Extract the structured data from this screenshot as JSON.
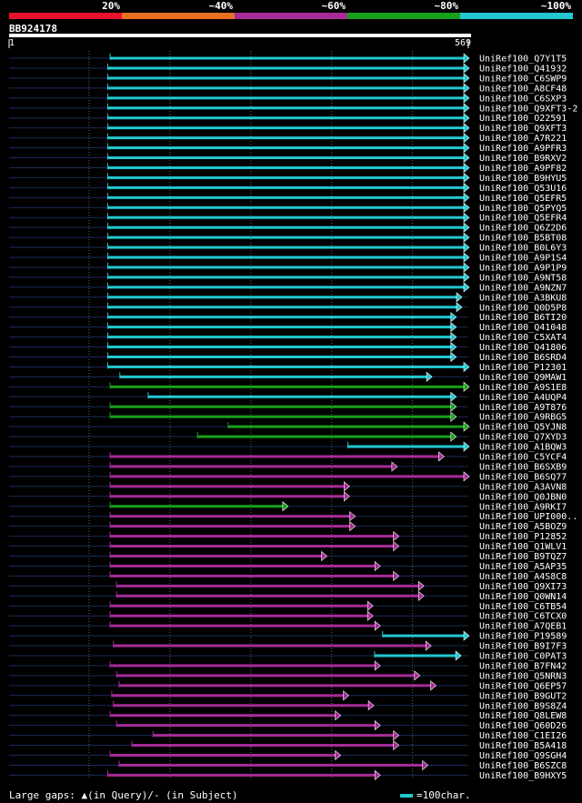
{
  "legend": {
    "segments": [
      {
        "label": "20%",
        "color": "#e8122c"
      },
      {
        "label": "~40%",
        "color": "#e87020"
      },
      {
        "label": "~60%",
        "color": "#a62b98"
      },
      {
        "label": "~80%",
        "color": "#17a01b"
      },
      {
        "label": "~100%",
        "color": "#22c7d0"
      }
    ]
  },
  "query": {
    "name": "BB924178",
    "start": "1",
    "end": "569"
  },
  "footer": {
    "gaps_text": "Large gaps: ▲(in Query)/- (in Subject)",
    "scale_text": "=100char."
  },
  "chart_data": {
    "type": "alignment-overview",
    "query_length": 569,
    "hits": [
      {
        "name": "UniRef100_Q7Y1T5",
        "start": 126,
        "end": 569,
        "color": "#22c7d0"
      },
      {
        "name": "UniRef100_Q41932",
        "start": 123,
        "end": 569,
        "color": "#22c7d0"
      },
      {
        "name": "UniRef100_C6SWP9",
        "start": 123,
        "end": 569,
        "color": "#22c7d0"
      },
      {
        "name": "UniRef100_A8CF48",
        "start": 123,
        "end": 569,
        "color": "#22c7d0"
      },
      {
        "name": "UniRef100_C6SXP3",
        "start": 123,
        "end": 569,
        "color": "#22c7d0"
      },
      {
        "name": "UniRef100_Q9XFT3-2",
        "start": 123,
        "end": 569,
        "color": "#22c7d0"
      },
      {
        "name": "UniRef100_O22591",
        "start": 123,
        "end": 569,
        "color": "#22c7d0"
      },
      {
        "name": "UniRef100_Q9XFT3",
        "start": 123,
        "end": 569,
        "color": "#22c7d0"
      },
      {
        "name": "UniRef100_A7R221",
        "start": 123,
        "end": 569,
        "color": "#22c7d0"
      },
      {
        "name": "UniRef100_A9PFR3",
        "start": 123,
        "end": 569,
        "color": "#22c7d0"
      },
      {
        "name": "UniRef100_B9RXV2",
        "start": 123,
        "end": 569,
        "color": "#22c7d0"
      },
      {
        "name": "UniRef100_A9PF82",
        "start": 123,
        "end": 569,
        "color": "#22c7d0"
      },
      {
        "name": "UniRef100_B9HYU5",
        "start": 123,
        "end": 569,
        "color": "#22c7d0"
      },
      {
        "name": "UniRef100_Q53U16",
        "start": 123,
        "end": 569,
        "color": "#22c7d0"
      },
      {
        "name": "UniRef100_Q5EFR5",
        "start": 123,
        "end": 569,
        "color": "#22c7d0"
      },
      {
        "name": "UniRef100_Q5PYQ5",
        "start": 123,
        "end": 569,
        "color": "#22c7d0"
      },
      {
        "name": "UniRef100_Q5EFR4",
        "start": 123,
        "end": 569,
        "color": "#22c7d0"
      },
      {
        "name": "UniRef100_Q6Z2D6",
        "start": 123,
        "end": 569,
        "color": "#22c7d0"
      },
      {
        "name": "UniRef100_B5BT08",
        "start": 123,
        "end": 569,
        "color": "#22c7d0"
      },
      {
        "name": "UniRef100_B0L6Y3",
        "start": 123,
        "end": 569,
        "color": "#22c7d0"
      },
      {
        "name": "UniRef100_A9P1S4",
        "start": 123,
        "end": 569,
        "color": "#22c7d0"
      },
      {
        "name": "UniRef100_A9P1P9",
        "start": 123,
        "end": 569,
        "color": "#22c7d0"
      },
      {
        "name": "UniRef100_A9NT58",
        "start": 123,
        "end": 569,
        "color": "#22c7d0"
      },
      {
        "name": "UniRef100_A9NZN7",
        "start": 123,
        "end": 569,
        "color": "#22c7d0"
      },
      {
        "name": "UniRef100_A3BKU8",
        "start": 123,
        "end": 560,
        "color": "#22c7d0"
      },
      {
        "name": "UniRef100_Q0D5P8",
        "start": 123,
        "end": 560,
        "color": "#22c7d0"
      },
      {
        "name": "UniRef100_B6TI20",
        "start": 123,
        "end": 553,
        "color": "#22c7d0"
      },
      {
        "name": "UniRef100_Q41048",
        "start": 123,
        "end": 553,
        "color": "#22c7d0"
      },
      {
        "name": "UniRef100_C5XAT4",
        "start": 123,
        "end": 553,
        "color": "#22c7d0"
      },
      {
        "name": "UniRef100_Q41806",
        "start": 123,
        "end": 553,
        "color": "#22c7d0"
      },
      {
        "name": "UniRef100_B6SRD4",
        "start": 123,
        "end": 553,
        "color": "#22c7d0"
      },
      {
        "name": "UniRef100_P12301",
        "start": 123,
        "end": 569,
        "color": "#22c7d0"
      },
      {
        "name": "UniRef100_Q9MAW1",
        "start": 138,
        "end": 523,
        "color": "#22c7d0"
      },
      {
        "name": "UniRef100_A9S1E8",
        "start": 126,
        "end": 569,
        "color": "#17a01b"
      },
      {
        "name": "UniRef100_A4UQP4",
        "start": 173,
        "end": 553,
        "color": "#22c7d0"
      },
      {
        "name": "UniRef100_A9T876",
        "start": 126,
        "end": 553,
        "color": "#17a01b"
      },
      {
        "name": "UniRef100_A9RBG5",
        "start": 126,
        "end": 553,
        "color": "#17a01b"
      },
      {
        "name": "UniRef100_Q5YJN8",
        "start": 272,
        "end": 569,
        "color": "#17a01b"
      },
      {
        "name": "UniRef100_Q7XYD3",
        "start": 234,
        "end": 553,
        "color": "#17a01b"
      },
      {
        "name": "UniRef100_A1BQW3",
        "start": 420,
        "end": 569,
        "color": "#22c7d0"
      },
      {
        "name": "UniRef100_C5YCF4",
        "start": 126,
        "end": 538,
        "color": "#a62b98"
      },
      {
        "name": "UniRef100_B6SXB9",
        "start": 126,
        "end": 480,
        "color": "#a62b98"
      },
      {
        "name": "UniRef100_B6SQ77",
        "start": 126,
        "end": 569,
        "color": "#a62b98"
      },
      {
        "name": "UniRef100_A3AVN8",
        "start": 126,
        "end": 421,
        "color": "#a62b98"
      },
      {
        "name": "UniRef100_Q0JBN0",
        "start": 126,
        "end": 421,
        "color": "#a62b98"
      },
      {
        "name": "UniRef100_A9RKI7",
        "start": 126,
        "end": 345,
        "color": "#17a01b"
      },
      {
        "name": "UniRef100_UPI000..",
        "start": 126,
        "end": 428,
        "color": "#a62b98"
      },
      {
        "name": "UniRef100_A5BOZ9",
        "start": 126,
        "end": 428,
        "color": "#a62b98"
      },
      {
        "name": "UniRef100_P12852",
        "start": 126,
        "end": 482,
        "color": "#a62b98"
      },
      {
        "name": "UniRef100_Q1WLV1",
        "start": 126,
        "end": 482,
        "color": "#a62b98"
      },
      {
        "name": "UniRef100_B9TQZ7",
        "start": 126,
        "end": 393,
        "color": "#a62b98"
      },
      {
        "name": "UniRef100_A5AP35",
        "start": 126,
        "end": 459,
        "color": "#a62b98"
      },
      {
        "name": "UniRef100_A4S8C8",
        "start": 126,
        "end": 482,
        "color": "#a62b98"
      },
      {
        "name": "UniRef100_Q9XI73",
        "start": 134,
        "end": 513,
        "color": "#a62b98"
      },
      {
        "name": "UniRef100_Q0WN14",
        "start": 134,
        "end": 513,
        "color": "#a62b98"
      },
      {
        "name": "UniRef100_C6TB54",
        "start": 126,
        "end": 450,
        "color": "#a62b98"
      },
      {
        "name": "UniRef100_C6TCX0",
        "start": 126,
        "end": 450,
        "color": "#a62b98"
      },
      {
        "name": "UniRef100_A7QEB1",
        "start": 126,
        "end": 459,
        "color": "#a62b98"
      },
      {
        "name": "UniRef100_P19589",
        "start": 463,
        "end": 569,
        "color": "#22c7d0"
      },
      {
        "name": "UniRef100_B9I7F3",
        "start": 130,
        "end": 522,
        "color": "#a62b98"
      },
      {
        "name": "UniRef100_C0PAT3",
        "start": 453,
        "end": 559,
        "color": "#22c7d0"
      },
      {
        "name": "UniRef100_B7FN42",
        "start": 126,
        "end": 459,
        "color": "#a62b98"
      },
      {
        "name": "UniRef100_Q5NRN3",
        "start": 134,
        "end": 508,
        "color": "#a62b98"
      },
      {
        "name": "UniRef100_Q6EP57",
        "start": 137,
        "end": 528,
        "color": "#a62b98"
      },
      {
        "name": "UniRef100_B9GUT2",
        "start": 128,
        "end": 420,
        "color": "#a62b98"
      },
      {
        "name": "UniRef100_B9S8Z4",
        "start": 130,
        "end": 451,
        "color": "#a62b98"
      },
      {
        "name": "UniRef100_Q8LEW8",
        "start": 126,
        "end": 410,
        "color": "#a62b98"
      },
      {
        "name": "UniRef100_Q60D26",
        "start": 134,
        "end": 459,
        "color": "#a62b98"
      },
      {
        "name": "UniRef100_C1EI26",
        "start": 179,
        "end": 482,
        "color": "#a62b98"
      },
      {
        "name": "UniRef100_B5A418",
        "start": 153,
        "end": 482,
        "color": "#a62b98"
      },
      {
        "name": "UniRef100_Q9SGH4",
        "start": 126,
        "end": 410,
        "color": "#a62b98"
      },
      {
        "name": "UniRef100_B6SZC8",
        "start": 137,
        "end": 518,
        "color": "#a62b98"
      },
      {
        "name": "UniRef100_B9HXY5",
        "start": 123,
        "end": 459,
        "color": "#a62b98"
      }
    ]
  }
}
